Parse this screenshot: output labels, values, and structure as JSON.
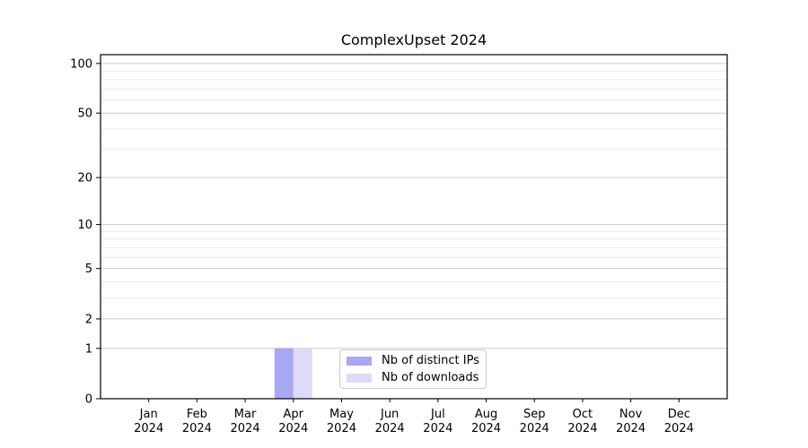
{
  "chart_data": {
    "type": "bar",
    "title": "ComplexUpset 2024",
    "categories": [
      {
        "label": "Jan",
        "sublabel": "2024"
      },
      {
        "label": "Feb",
        "sublabel": "2024"
      },
      {
        "label": "Mar",
        "sublabel": "2024"
      },
      {
        "label": "Apr",
        "sublabel": "2024"
      },
      {
        "label": "May",
        "sublabel": "2024"
      },
      {
        "label": "Jun",
        "sublabel": "2024"
      },
      {
        "label": "Jul",
        "sublabel": "2024"
      },
      {
        "label": "Aug",
        "sublabel": "2024"
      },
      {
        "label": "Sep",
        "sublabel": "2024"
      },
      {
        "label": "Oct",
        "sublabel": "2024"
      },
      {
        "label": "Nov",
        "sublabel": "2024"
      },
      {
        "label": "Dec",
        "sublabel": "2024"
      }
    ],
    "series": [
      {
        "name": "Nb of distinct IPs",
        "color": "#a8a8f3",
        "values": [
          0,
          0,
          0,
          1,
          0,
          0,
          0,
          0,
          0,
          0,
          0,
          0
        ]
      },
      {
        "name": "Nb of downloads",
        "color": "#dcdcf8",
        "values": [
          0,
          0,
          0,
          1,
          0,
          0,
          0,
          0,
          0,
          0,
          0,
          0
        ]
      }
    ],
    "xlabel": "",
    "ylabel": "",
    "yscale": "log1p",
    "ylim": [
      0,
      113
    ],
    "yticks": [
      0,
      1,
      2,
      5,
      10,
      20,
      50,
      100
    ],
    "yticks_minor": [
      3,
      4,
      6,
      7,
      8,
      9,
      30,
      40,
      60,
      70,
      80,
      90
    ],
    "grid": true,
    "legend_position": "lower center",
    "colors": {
      "grid_major": "#cccccc",
      "grid_minor": "#ececec",
      "spine": "#000000",
      "text": "#000000",
      "legend_border": "#cccccc",
      "background": "#ffffff"
    }
  }
}
